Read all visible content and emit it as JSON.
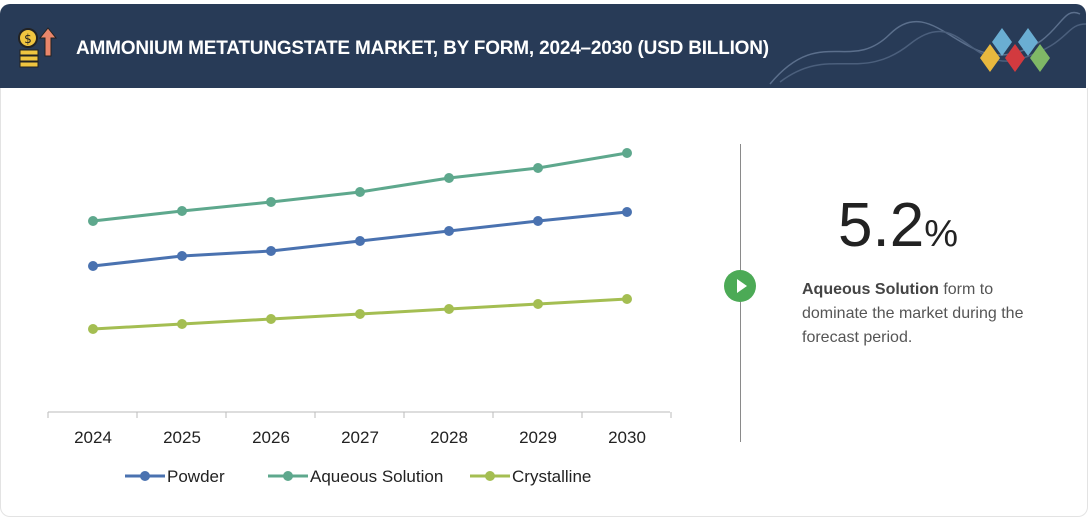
{
  "header": {
    "title": "AMMONIUM METATUNGSTATE MARKET, BY FORM, 2024–2030 (USD BILLION)",
    "icon": "money-growth-icon",
    "logo": "diamond-logo-icon"
  },
  "highlight": {
    "value": "5.2",
    "unit": "%",
    "bold": "Aqueous Solution",
    "text": " form to dominate the market during the forecast period."
  },
  "chart_data": {
    "type": "line",
    "title": "AMMONIUM METATUNGSTATE MARKET, BY FORM, 2024–2030 (USD BILLION)",
    "categories": [
      "2024",
      "2025",
      "2026",
      "2027",
      "2028",
      "2029",
      "2030"
    ],
    "series": [
      {
        "name": "Powder",
        "color": "#4a72b0",
        "values": [
          1.46,
          1.56,
          1.61,
          1.71,
          1.81,
          1.91,
          2.0
        ]
      },
      {
        "name": "Aqueous Solution",
        "color": "#5ea88d",
        "values": [
          1.91,
          2.01,
          2.1,
          2.2,
          2.34,
          2.44,
          2.59
        ]
      },
      {
        "name": "Crystalline",
        "color": "#a4be52",
        "values": [
          0.83,
          0.88,
          0.93,
          0.98,
          1.03,
          1.08,
          1.13
        ]
      }
    ],
    "ylim": [
      0,
      3.2
    ],
    "grid": false,
    "legend": "bottom",
    "y_axis_shown": false
  }
}
